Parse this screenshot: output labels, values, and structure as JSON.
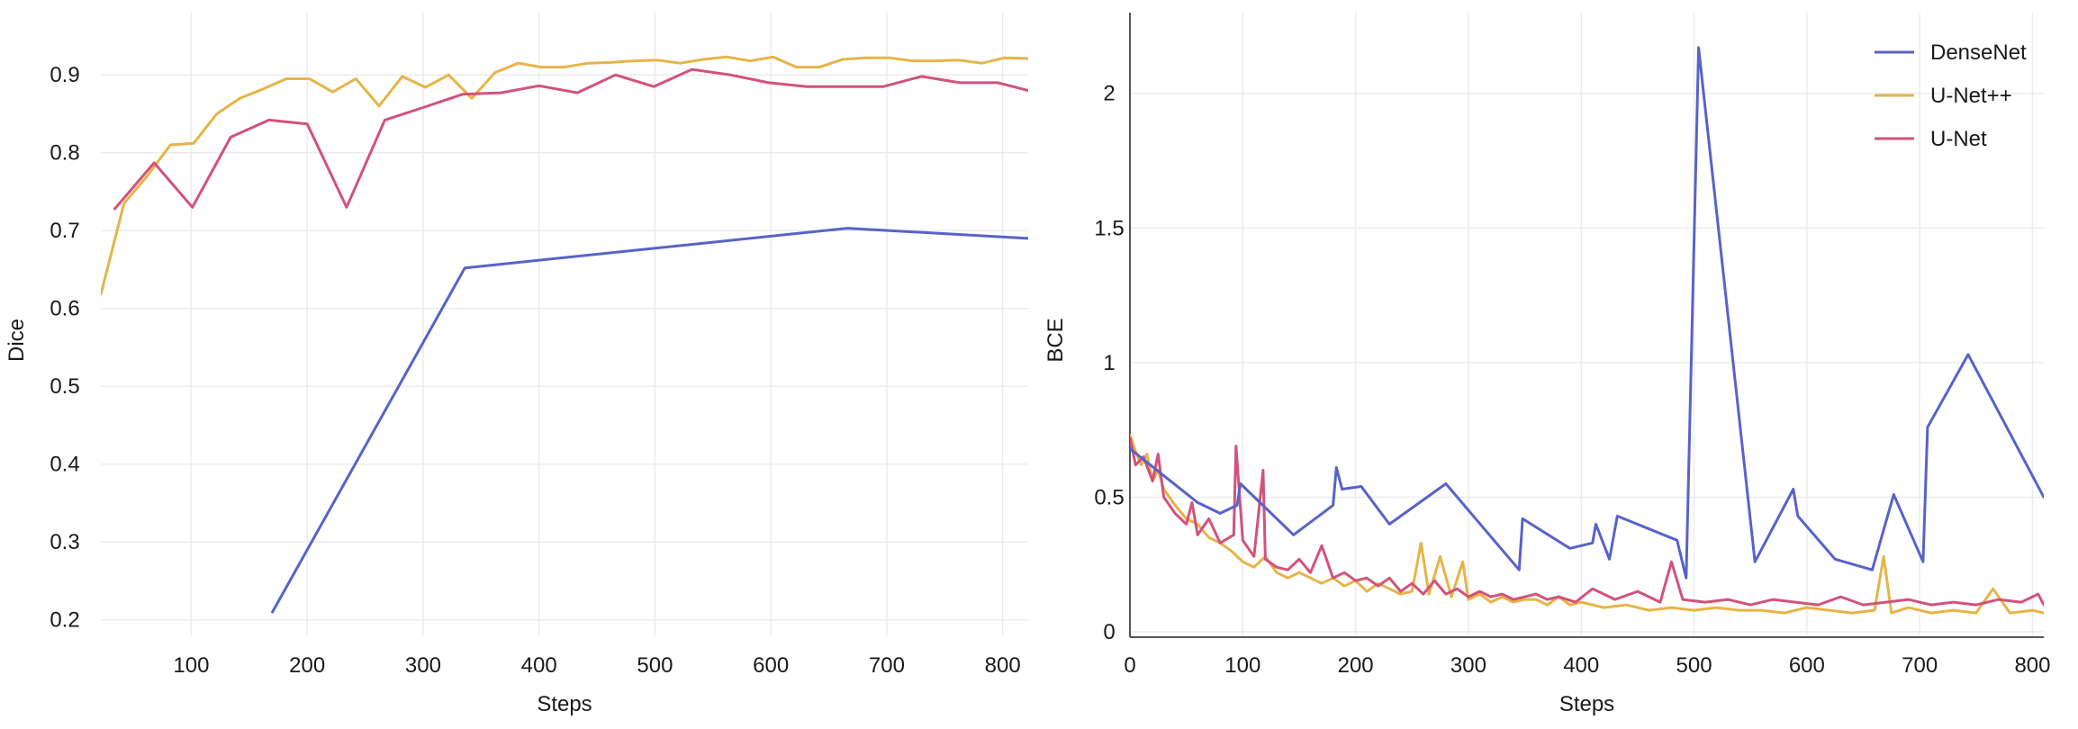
{
  "chart_data": [
    {
      "type": "line",
      "xlabel": "Steps",
      "ylabel": "Dice",
      "xlim": [
        22,
        822
      ],
      "ylim": [
        0.18,
        0.98
      ],
      "xticks": [
        100,
        200,
        300,
        400,
        500,
        600,
        700,
        800
      ],
      "yticks": [
        0.2,
        0.3,
        0.4,
        0.5,
        0.6,
        0.7,
        0.8,
        0.9
      ],
      "ytick_labels": [
        "0.2",
        "0.3",
        "0.4",
        "0.5",
        "0.6",
        "0.7",
        "0.8",
        "0.9"
      ],
      "grid": true,
      "series": [
        {
          "name": "DenseNet",
          "color": "#5763c9",
          "x": [
            170,
            336,
            666,
            822
          ],
          "y": [
            0.21,
            0.652,
            0.703,
            0.69
          ]
        },
        {
          "name": "U-Net++",
          "color": "#e6b447",
          "x": [
            22,
            42,
            62,
            82,
            102,
            122,
            142,
            162,
            182,
            202,
            222,
            242,
            262,
            282,
            302,
            322,
            342,
            362,
            382,
            402,
            422,
            442,
            462,
            482,
            502,
            522,
            542,
            562,
            582,
            602,
            622,
            642,
            662,
            682,
            702,
            722,
            742,
            762,
            782,
            802,
            822
          ],
          "y": [
            0.618,
            0.735,
            0.77,
            0.81,
            0.812,
            0.85,
            0.87,
            0.882,
            0.895,
            0.895,
            0.878,
            0.895,
            0.86,
            0.898,
            0.884,
            0.9,
            0.87,
            0.903,
            0.915,
            0.91,
            0.91,
            0.915,
            0.916,
            0.918,
            0.919,
            0.915,
            0.92,
            0.923,
            0.918,
            0.923,
            0.91,
            0.91,
            0.92,
            0.922,
            0.922,
            0.918,
            0.918,
            0.919,
            0.915,
            0.922,
            0.921
          ]
        },
        {
          "name": "U-Net",
          "color": "#d2527a",
          "x": [
            34,
            68,
            101,
            134,
            167,
            200,
            234,
            267,
            300,
            334,
            367,
            400,
            433,
            466,
            499,
            532,
            565,
            598,
            631,
            664,
            697,
            730,
            763,
            796,
            822
          ],
          "y": [
            0.728,
            0.787,
            0.73,
            0.82,
            0.842,
            0.837,
            0.73,
            0.842,
            0.858,
            0.875,
            0.877,
            0.886,
            0.877,
            0.9,
            0.885,
            0.907,
            0.9,
            0.89,
            0.885,
            0.885,
            0.885,
            0.898,
            0.89,
            0.89,
            0.88
          ]
        }
      ]
    },
    {
      "type": "line",
      "xlabel": "Steps",
      "ylabel": "BCE",
      "xlim": [
        0,
        810
      ],
      "ylim": [
        -0.02,
        2.3
      ],
      "xticks": [
        0,
        100,
        200,
        300,
        400,
        500,
        600,
        700,
        800
      ],
      "yticks": [
        0,
        0.5,
        1,
        1.5,
        2
      ],
      "ytick_labels": [
        "0",
        "0.5",
        "1",
        "1.5",
        "2"
      ],
      "grid": true,
      "legend": {
        "position": "top-right",
        "entries": [
          "DenseNet",
          "U-Net++",
          "U-Net"
        ]
      },
      "series": [
        {
          "name": "DenseNet",
          "color": "#5763c9",
          "x": [
            0,
            18,
            60,
            80,
            95,
            98,
            145,
            180,
            183,
            188,
            205,
            230,
            280,
            345,
            348,
            390,
            410,
            413,
            425,
            432,
            485,
            493,
            504,
            554,
            588,
            592,
            625,
            658,
            677,
            703,
            707,
            743,
            810
          ],
          "y": [
            0.68,
            0.62,
            0.48,
            0.44,
            0.47,
            0.55,
            0.36,
            0.47,
            0.61,
            0.53,
            0.54,
            0.4,
            0.55,
            0.23,
            0.42,
            0.31,
            0.33,
            0.4,
            0.27,
            0.43,
            0.34,
            0.2,
            2.17,
            0.26,
            0.53,
            0.43,
            0.27,
            0.23,
            0.51,
            0.26,
            0.76,
            1.03,
            0.5
          ]
        },
        {
          "name": "U-Net++",
          "color": "#e6b447",
          "x": [
            0,
            5,
            10,
            15,
            20,
            25,
            30,
            40,
            50,
            60,
            70,
            80,
            90,
            100,
            110,
            120,
            130,
            140,
            150,
            160,
            170,
            180,
            190,
            200,
            210,
            220,
            230,
            240,
            250,
            258,
            265,
            275,
            285,
            295,
            300,
            310,
            320,
            330,
            340,
            350,
            360,
            370,
            380,
            390,
            400,
            420,
            440,
            460,
            480,
            500,
            520,
            540,
            560,
            580,
            600,
            620,
            640,
            660,
            668,
            675,
            690,
            710,
            730,
            750,
            765,
            780,
            800,
            810
          ],
          "y": [
            0.73,
            0.67,
            0.62,
            0.66,
            0.56,
            0.6,
            0.53,
            0.47,
            0.42,
            0.4,
            0.35,
            0.33,
            0.3,
            0.26,
            0.24,
            0.28,
            0.22,
            0.2,
            0.22,
            0.2,
            0.18,
            0.2,
            0.17,
            0.19,
            0.15,
            0.18,
            0.16,
            0.14,
            0.15,
            0.33,
            0.14,
            0.28,
            0.13,
            0.26,
            0.12,
            0.14,
            0.11,
            0.13,
            0.11,
            0.12,
            0.12,
            0.1,
            0.13,
            0.1,
            0.11,
            0.09,
            0.1,
            0.08,
            0.09,
            0.08,
            0.09,
            0.08,
            0.08,
            0.07,
            0.09,
            0.08,
            0.07,
            0.08,
            0.28,
            0.07,
            0.09,
            0.07,
            0.08,
            0.07,
            0.16,
            0.07,
            0.08,
            0.07
          ]
        },
        {
          "name": "U-Net",
          "color": "#d2527a",
          "x": [
            0,
            5,
            12,
            20,
            25,
            30,
            40,
            50,
            55,
            60,
            70,
            80,
            92,
            94,
            100,
            110,
            118,
            120,
            130,
            140,
            150,
            160,
            170,
            180,
            190,
            200,
            210,
            220,
            230,
            240,
            250,
            260,
            270,
            280,
            290,
            300,
            310,
            320,
            330,
            340,
            350,
            360,
            370,
            380,
            395,
            410,
            430,
            450,
            470,
            480,
            490,
            510,
            530,
            550,
            570,
            590,
            610,
            630,
            650,
            670,
            690,
            710,
            730,
            750,
            770,
            790,
            805,
            810
          ],
          "y": [
            0.72,
            0.62,
            0.65,
            0.56,
            0.66,
            0.5,
            0.44,
            0.4,
            0.48,
            0.36,
            0.42,
            0.33,
            0.36,
            0.69,
            0.34,
            0.28,
            0.6,
            0.27,
            0.24,
            0.23,
            0.27,
            0.22,
            0.32,
            0.2,
            0.22,
            0.19,
            0.2,
            0.17,
            0.2,
            0.15,
            0.18,
            0.14,
            0.19,
            0.14,
            0.16,
            0.13,
            0.15,
            0.13,
            0.14,
            0.12,
            0.13,
            0.14,
            0.12,
            0.13,
            0.11,
            0.16,
            0.12,
            0.15,
            0.11,
            0.26,
            0.12,
            0.11,
            0.12,
            0.1,
            0.12,
            0.11,
            0.1,
            0.13,
            0.1,
            0.11,
            0.12,
            0.1,
            0.11,
            0.1,
            0.12,
            0.11,
            0.14,
            0.1
          ]
        }
      ]
    }
  ]
}
